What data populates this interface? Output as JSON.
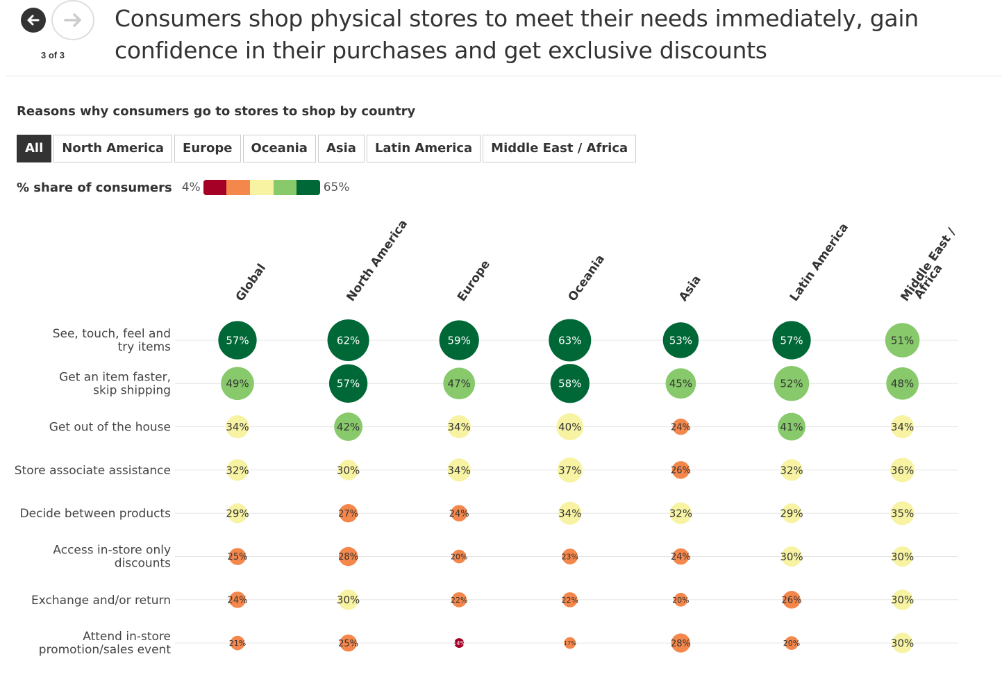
{
  "nav": {
    "back_icon": "arrow-left-icon",
    "forward_icon": "arrow-right-icon",
    "counter": "3 of 3"
  },
  "headline": "Consumers shop physical stores to meet their needs immediately, gain confidence in their purchases and get exclusive discounts",
  "filters": {
    "items": [
      "All",
      "North America",
      "Europe",
      "Oceania",
      "Asia",
      "Latin America",
      "Middle East / Africa"
    ],
    "selected": "All"
  },
  "legend": {
    "title": "% share of consumers",
    "min_label": "4%",
    "max_label": "65%",
    "colors": [
      "#a50026",
      "#f4874b",
      "#f7f3a3",
      "#87c96b",
      "#006837"
    ]
  },
  "chart_data": {
    "type": "heatmap",
    "title": "Reasons why consumers go to stores to shop by country",
    "columns": [
      "Global",
      "North America",
      "Europe",
      "Oceania",
      "Asia",
      "Latin America",
      "Middle East / Africa"
    ],
    "rows": [
      "See, touch, feel and try items",
      "Get an item faster, skip shipping",
      "Get out of the house",
      "Store associate assistance",
      "Decide between products",
      "Access in-store only discounts",
      "Exchange and/or return",
      "Attend in-store promotion/sales event"
    ],
    "values": [
      [
        57,
        62,
        59,
        63,
        53,
        57,
        51
      ],
      [
        49,
        57,
        47,
        58,
        45,
        52,
        48
      ],
      [
        34,
        42,
        34,
        40,
        24,
        41,
        34
      ],
      [
        32,
        30,
        34,
        37,
        26,
        32,
        36
      ],
      [
        29,
        27,
        24,
        34,
        32,
        29,
        35
      ],
      [
        25,
        28,
        20,
        23,
        24,
        30,
        30
      ],
      [
        24,
        30,
        22,
        22,
        20,
        26,
        30
      ],
      [
        21,
        25,
        14,
        17,
        28,
        20,
        30
      ]
    ],
    "unit": "%",
    "scale": [
      4,
      65
    ]
  }
}
